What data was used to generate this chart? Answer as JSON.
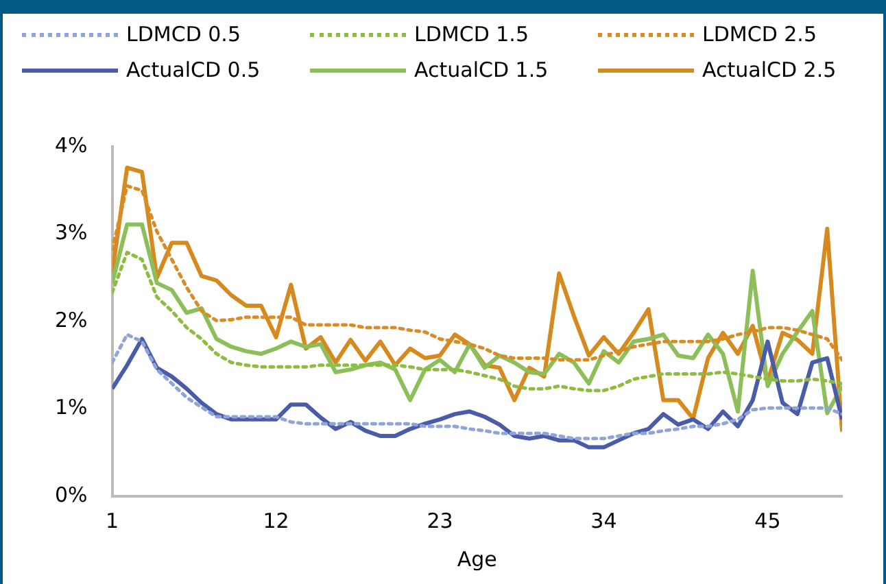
{
  "chart_data": {
    "type": "line",
    "xlabel": "Age",
    "legend": "top",
    "grid": false,
    "marker": "none",
    "x": [
      1,
      2,
      3,
      4,
      5,
      6,
      7,
      8,
      9,
      10,
      11,
      12,
      13,
      14,
      15,
      16,
      17,
      18,
      19,
      20,
      21,
      22,
      23,
      24,
      25,
      26,
      27,
      28,
      29,
      30,
      31,
      32,
      33,
      34,
      35,
      36,
      37,
      38,
      39,
      40,
      41,
      42,
      43,
      44,
      45,
      46,
      47,
      48,
      49,
      50
    ],
    "xlim": [
      1,
      50
    ],
    "xticks": [
      1,
      12,
      23,
      34,
      45
    ],
    "ylim": [
      0,
      4
    ],
    "yticks": [
      {
        "value": 0,
        "label": "0%"
      },
      {
        "value": 1,
        "label": "1%"
      },
      {
        "value": 2,
        "label": "2%"
      },
      {
        "value": 3,
        "label": "3%"
      },
      {
        "value": 4,
        "label": "4%"
      }
    ],
    "series": [
      {
        "name": "LDMCD 0.5",
        "color": "#8fa5d9",
        "line_style": "dotted",
        "values": [
          1.53,
          1.85,
          1.77,
          1.45,
          1.29,
          1.13,
          1.02,
          0.91,
          0.91,
          0.91,
          0.91,
          0.91,
          0.85,
          0.83,
          0.83,
          0.83,
          0.83,
          0.83,
          0.83,
          0.83,
          0.83,
          0.8,
          0.8,
          0.8,
          0.77,
          0.75,
          0.72,
          0.72,
          0.72,
          0.72,
          0.69,
          0.66,
          0.66,
          0.66,
          0.69,
          0.72,
          0.72,
          0.75,
          0.77,
          0.8,
          0.8,
          0.83,
          0.88,
          0.99,
          1.01,
          1.01,
          1.01,
          1.01,
          1.01,
          0.94
        ]
      },
      {
        "name": "LDMCD 1.5",
        "color": "#8cbd3f",
        "line_style": "dotted",
        "values": [
          2.33,
          2.79,
          2.71,
          2.28,
          2.12,
          1.93,
          1.8,
          1.63,
          1.53,
          1.5,
          1.48,
          1.48,
          1.48,
          1.48,
          1.5,
          1.5,
          1.5,
          1.5,
          1.5,
          1.5,
          1.48,
          1.45,
          1.45,
          1.45,
          1.42,
          1.38,
          1.34,
          1.26,
          1.23,
          1.23,
          1.26,
          1.23,
          1.21,
          1.21,
          1.26,
          1.34,
          1.37,
          1.4,
          1.4,
          1.4,
          1.4,
          1.42,
          1.4,
          1.37,
          1.34,
          1.32,
          1.32,
          1.34,
          1.32,
          1.29
        ]
      },
      {
        "name": "LDMCD 2.5",
        "color": "#d98c26",
        "line_style": "dotted",
        "values": [
          2.82,
          3.55,
          3.5,
          3.03,
          2.71,
          2.39,
          2.12,
          2.01,
          2.02,
          2.05,
          2.05,
          2.05,
          2.05,
          1.96,
          1.96,
          1.96,
          1.96,
          1.93,
          1.93,
          1.93,
          1.9,
          1.88,
          1.8,
          1.77,
          1.74,
          1.69,
          1.61,
          1.58,
          1.58,
          1.58,
          1.56,
          1.56,
          1.56,
          1.61,
          1.66,
          1.71,
          1.74,
          1.77,
          1.77,
          1.77,
          1.77,
          1.8,
          1.85,
          1.88,
          1.93,
          1.93,
          1.9,
          1.85,
          1.8,
          1.56
        ]
      },
      {
        "name": "ActualCD 0.5",
        "color": "#4a5ba8",
        "line_style": "solid",
        "values": [
          1.23,
          1.5,
          1.8,
          1.47,
          1.37,
          1.23,
          1.07,
          0.94,
          0.88,
          0.88,
          0.88,
          0.88,
          1.05,
          1.05,
          0.9,
          0.77,
          0.85,
          0.75,
          0.69,
          0.69,
          0.77,
          0.83,
          0.88,
          0.94,
          0.97,
          0.91,
          0.82,
          0.69,
          0.66,
          0.69,
          0.64,
          0.64,
          0.56,
          0.56,
          0.64,
          0.72,
          0.77,
          0.94,
          0.82,
          0.88,
          0.77,
          0.97,
          0.8,
          1.1,
          1.77,
          1.07,
          0.94,
          1.53,
          1.58,
          0.88
        ]
      },
      {
        "name": "ActualCD 1.5",
        "color": "#8cbf5a",
        "line_style": "solid",
        "values": [
          2.44,
          3.11,
          3.11,
          2.44,
          2.36,
          2.1,
          2.15,
          1.8,
          1.71,
          1.66,
          1.63,
          1.69,
          1.77,
          1.71,
          1.74,
          1.42,
          1.45,
          1.5,
          1.53,
          1.45,
          1.1,
          1.45,
          1.56,
          1.42,
          1.74,
          1.47,
          1.61,
          1.53,
          1.42,
          1.4,
          1.63,
          1.53,
          1.29,
          1.66,
          1.53,
          1.77,
          1.8,
          1.85,
          1.61,
          1.58,
          1.85,
          1.63,
          0.97,
          2.58,
          1.26,
          1.63,
          1.88,
          2.12,
          0.95,
          1.26
        ]
      },
      {
        "name": "ActualCD 2.5",
        "color": "#d68a1e",
        "line_style": "solid",
        "values": [
          2.55,
          3.76,
          3.71,
          2.5,
          2.9,
          2.9,
          2.52,
          2.47,
          2.3,
          2.18,
          2.18,
          1.82,
          2.42,
          1.69,
          1.82,
          1.53,
          1.79,
          1.55,
          1.77,
          1.5,
          1.69,
          1.58,
          1.61,
          1.85,
          1.74,
          1.5,
          1.47,
          1.1,
          1.47,
          1.37,
          2.55,
          2.06,
          1.61,
          1.82,
          1.63,
          1.87,
          2.14,
          1.1,
          1.1,
          0.89,
          1.58,
          1.87,
          1.63,
          1.95,
          1.31,
          1.87,
          1.79,
          1.63,
          3.06,
          0.74
        ]
      }
    ]
  }
}
